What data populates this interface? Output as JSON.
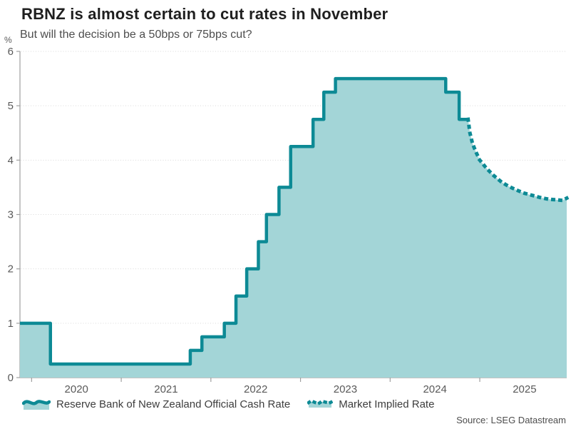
{
  "header": {
    "title": "RBNZ is almost certain to cut rates in November",
    "subtitle": "But will the decision be a 50bps or 75bps cut?"
  },
  "source": "Source: LSEG Datastream",
  "colors": {
    "line": "#0d8a95",
    "fill": "#a3d5d7",
    "grid": "#d9d9d9",
    "axis": "#9f9f9f",
    "tick_label": "#595959",
    "title": "#1f1f1f",
    "subtitle": "#4d4d4d"
  },
  "legend": {
    "items": [
      {
        "label": "Reserve Bank of New Zealand Official Cash Rate",
        "style": "solid"
      },
      {
        "label": "Market Implied Rate",
        "style": "dotted"
      }
    ]
  },
  "chart_data": {
    "type": "area",
    "title": "RBNZ is almost certain to cut rates in November",
    "subtitle": "But will the decision be a 50bps or 75bps cut?",
    "y_unit": "%",
    "ylim": [
      0,
      6
    ],
    "y_ticks": [
      0,
      1,
      2,
      3,
      4,
      5,
      6
    ],
    "x_ticks": [
      2020,
      2021,
      2022,
      2023,
      2024,
      2025
    ],
    "x_range": [
      2019.87,
      2025.97
    ],
    "grid": "horizontal-dotted",
    "legend_position": "bottom",
    "series": [
      {
        "name": "Reserve Bank of New Zealand Official Cash Rate",
        "style": "step-solid",
        "points": [
          [
            2019.87,
            1.0
          ],
          [
            2020.21,
            0.25
          ],
          [
            2021.77,
            0.5
          ],
          [
            2021.9,
            0.75
          ],
          [
            2022.15,
            1.0
          ],
          [
            2022.28,
            1.5
          ],
          [
            2022.4,
            2.0
          ],
          [
            2022.53,
            2.5
          ],
          [
            2022.62,
            3.0
          ],
          [
            2022.76,
            3.5
          ],
          [
            2022.89,
            4.25
          ],
          [
            2023.14,
            4.75
          ],
          [
            2023.26,
            5.25
          ],
          [
            2023.39,
            5.5
          ],
          [
            2024.62,
            5.25
          ],
          [
            2024.77,
            4.75
          ],
          [
            2024.87,
            4.75
          ]
        ]
      },
      {
        "name": "Market Implied Rate",
        "style": "line-dotted",
        "points": [
          [
            2024.87,
            4.75
          ],
          [
            2024.89,
            4.5
          ],
          [
            2024.92,
            4.3
          ],
          [
            2024.96,
            4.14
          ],
          [
            2025.0,
            4.0
          ],
          [
            2025.08,
            3.84
          ],
          [
            2025.16,
            3.71
          ],
          [
            2025.24,
            3.6
          ],
          [
            2025.32,
            3.52
          ],
          [
            2025.41,
            3.45
          ],
          [
            2025.5,
            3.39
          ],
          [
            2025.59,
            3.35
          ],
          [
            2025.68,
            3.31
          ],
          [
            2025.77,
            3.28
          ],
          [
            2025.86,
            3.27
          ],
          [
            2025.92,
            3.26
          ],
          [
            2025.97,
            3.3
          ]
        ]
      }
    ]
  }
}
